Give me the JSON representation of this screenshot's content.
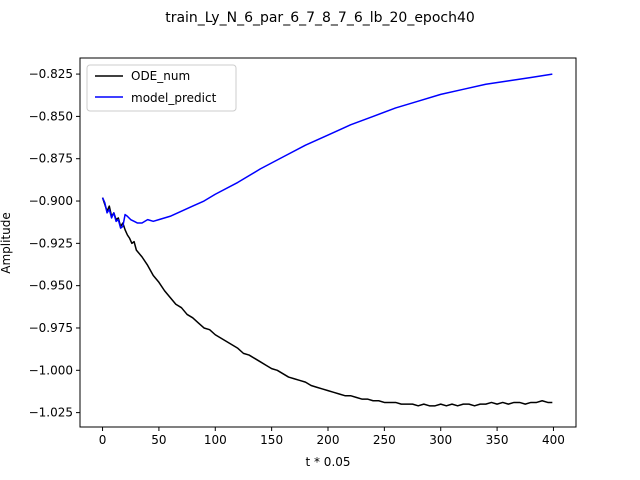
{
  "chart_data": {
    "type": "line",
    "title": "train_Ly_N_6_par_6_7_8_7_6_lb_20_epoch40",
    "xlabel": "t * 0.05",
    "ylabel": "Amplitude",
    "xlim": [
      -20,
      420
    ],
    "ylim": [
      -1.0335,
      -0.8155
    ],
    "xticks": [
      0,
      50,
      100,
      150,
      200,
      250,
      300,
      350,
      400
    ],
    "yticks": [
      -0.825,
      -0.85,
      -0.875,
      -0.9,
      -0.925,
      -0.95,
      -0.975,
      -1.0,
      -1.025
    ],
    "ytick_labels": [
      "−0.825",
      "−0.850",
      "−0.875",
      "−0.900",
      "−0.925",
      "−0.950",
      "−0.975",
      "−1.000",
      "−1.025"
    ],
    "grid": false,
    "legend_position": "top-left",
    "series": [
      {
        "name": "ODE_num",
        "color": "#000000",
        "x": [
          0,
          2,
          4,
          6,
          8,
          10,
          12,
          14,
          16,
          18,
          20,
          22,
          24,
          26,
          28,
          30,
          35,
          40,
          45,
          50,
          55,
          60,
          65,
          70,
          75,
          80,
          85,
          90,
          95,
          100,
          105,
          110,
          115,
          120,
          125,
          130,
          135,
          140,
          145,
          150,
          155,
          160,
          165,
          170,
          175,
          180,
          185,
          190,
          195,
          200,
          205,
          210,
          215,
          220,
          225,
          230,
          235,
          240,
          245,
          250,
          255,
          260,
          265,
          270,
          275,
          280,
          285,
          290,
          295,
          300,
          305,
          310,
          315,
          320,
          325,
          330,
          335,
          340,
          345,
          350,
          355,
          360,
          365,
          370,
          375,
          380,
          385,
          390,
          395,
          399
        ],
        "y": [
          -0.898,
          -0.902,
          -0.906,
          -0.903,
          -0.909,
          -0.907,
          -0.911,
          -0.91,
          -0.915,
          -0.913,
          -0.917,
          -0.92,
          -0.922,
          -0.925,
          -0.924,
          -0.929,
          -0.933,
          -0.938,
          -0.944,
          -0.948,
          -0.953,
          -0.957,
          -0.961,
          -0.963,
          -0.967,
          -0.969,
          -0.972,
          -0.975,
          -0.976,
          -0.979,
          -0.981,
          -0.983,
          -0.985,
          -0.987,
          -0.99,
          -0.991,
          -0.993,
          -0.995,
          -0.997,
          -0.999,
          -1.0,
          -1.002,
          -1.004,
          -1.005,
          -1.006,
          -1.007,
          -1.009,
          -1.01,
          -1.011,
          -1.012,
          -1.013,
          -1.014,
          -1.015,
          -1.015,
          -1.016,
          -1.017,
          -1.017,
          -1.018,
          -1.018,
          -1.019,
          -1.019,
          -1.019,
          -1.02,
          -1.02,
          -1.02,
          -1.021,
          -1.02,
          -1.021,
          -1.021,
          -1.02,
          -1.021,
          -1.02,
          -1.021,
          -1.02,
          -1.02,
          -1.021,
          -1.02,
          -1.02,
          -1.019,
          -1.02,
          -1.019,
          -1.02,
          -1.019,
          -1.019,
          -1.02,
          -1.019,
          -1.019,
          -1.018,
          -1.019,
          -1.019
        ]
      },
      {
        "name": "model_predict",
        "color": "#0000ff",
        "x": [
          0,
          2,
          4,
          6,
          8,
          10,
          12,
          14,
          16,
          18,
          20,
          22,
          25,
          28,
          31,
          35,
          40,
          45,
          50,
          60,
          70,
          80,
          90,
          100,
          120,
          140,
          160,
          180,
          200,
          220,
          240,
          260,
          280,
          300,
          320,
          340,
          360,
          380,
          399
        ],
        "y": [
          -0.898,
          -0.901,
          -0.907,
          -0.905,
          -0.91,
          -0.907,
          -0.912,
          -0.911,
          -0.916,
          -0.915,
          -0.908,
          -0.909,
          -0.911,
          -0.912,
          -0.913,
          -0.913,
          -0.911,
          -0.912,
          -0.911,
          -0.909,
          -0.906,
          -0.903,
          -0.9,
          -0.896,
          -0.889,
          -0.881,
          -0.874,
          -0.867,
          -0.861,
          -0.855,
          -0.85,
          -0.845,
          -0.841,
          -0.837,
          -0.834,
          -0.831,
          -0.829,
          -0.827,
          -0.825
        ]
      }
    ]
  }
}
